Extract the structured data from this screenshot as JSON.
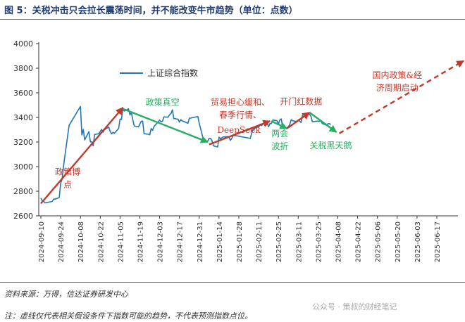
{
  "header": {
    "title": "图 5：关税冲击只会拉长震荡时间，并不能改变牛市趋势（单位：点数）"
  },
  "footer": {
    "source": "资料来源：万得，信达证券研发中心",
    "note": "注：虚线仅代表相关假设条件下指数可能的趋势，不代表预测指数点位。",
    "watermark": "公众号 · 策叔的财经笔记"
  },
  "chart_data": {
    "type": "line",
    "title": "",
    "xlabel": "",
    "ylabel": "",
    "ylim": [
      2600,
      4000
    ],
    "yticks": [
      2600,
      2800,
      3000,
      3200,
      3400,
      3600,
      3800,
      4000
    ],
    "xticks": [
      "2024-09-10",
      "2024-09-24",
      "2024-10-08",
      "2024-10-22",
      "2024-11-05",
      "2024-11-19",
      "2024-12-03",
      "2024-12-17",
      "2024-12-31",
      "2025-01-14",
      "2025-01-28",
      "2025-02-11",
      "2025-02-25",
      "2025-03-11",
      "2025-03-25",
      "2025-04-08",
      "2025-04-22",
      "2025-05-06",
      "2025-05-20",
      "2025-06-03",
      "2025-06-17"
    ],
    "legend": {
      "position": "top-left"
    },
    "series": [
      {
        "name": "上证综合指数",
        "color": "#1f77b4",
        "points": [
          [
            "2024-09-10",
            2744
          ],
          [
            "2024-09-11",
            2722
          ],
          [
            "2024-09-12",
            2717
          ],
          [
            "2024-09-13",
            2705
          ],
          [
            "2024-09-18",
            2717
          ],
          [
            "2024-09-19",
            2736
          ],
          [
            "2024-09-20",
            2736
          ],
          [
            "2024-09-23",
            2748
          ],
          [
            "2024-09-24",
            2864
          ],
          [
            "2024-09-25",
            2897
          ],
          [
            "2024-09-26",
            3000
          ],
          [
            "2024-09-27",
            3088
          ],
          [
            "2024-09-30",
            3336
          ],
          [
            "2024-10-08",
            3489
          ],
          [
            "2024-10-09",
            3258
          ],
          [
            "2024-10-10",
            3302
          ],
          [
            "2024-10-11",
            3217
          ],
          [
            "2024-10-14",
            3284
          ],
          [
            "2024-10-15",
            3201
          ],
          [
            "2024-10-16",
            3202
          ],
          [
            "2024-10-17",
            3169
          ],
          [
            "2024-10-18",
            3261
          ],
          [
            "2024-10-21",
            3268
          ],
          [
            "2024-10-22",
            3285
          ],
          [
            "2024-10-23",
            3302
          ],
          [
            "2024-10-24",
            3280
          ],
          [
            "2024-10-25",
            3300
          ],
          [
            "2024-10-28",
            3322
          ],
          [
            "2024-10-29",
            3286
          ],
          [
            "2024-10-30",
            3266
          ],
          [
            "2024-10-31",
            3279
          ],
          [
            "2024-11-01",
            3272
          ],
          [
            "2024-11-04",
            3310
          ],
          [
            "2024-11-05",
            3387
          ],
          [
            "2024-11-06",
            3383
          ],
          [
            "2024-11-07",
            3470
          ],
          [
            "2024-11-08",
            3452
          ],
          [
            "2024-11-11",
            3470
          ],
          [
            "2024-11-12",
            3421
          ],
          [
            "2024-11-13",
            3439
          ],
          [
            "2024-11-14",
            3380
          ],
          [
            "2024-11-15",
            3331
          ],
          [
            "2024-11-18",
            3323
          ],
          [
            "2024-11-19",
            3346
          ],
          [
            "2024-11-20",
            3368
          ],
          [
            "2024-11-21",
            3370
          ],
          [
            "2024-11-22",
            3268
          ],
          [
            "2024-11-25",
            3263
          ],
          [
            "2024-11-26",
            3259
          ],
          [
            "2024-11-27",
            3310
          ],
          [
            "2024-11-28",
            3295
          ],
          [
            "2024-11-29",
            3327
          ],
          [
            "2024-12-02",
            3364
          ],
          [
            "2024-12-03",
            3378
          ],
          [
            "2024-12-04",
            3365
          ],
          [
            "2024-12-05",
            3368
          ],
          [
            "2024-12-06",
            3404
          ],
          [
            "2024-12-09",
            3402
          ],
          [
            "2024-12-10",
            3422
          ],
          [
            "2024-12-11",
            3432
          ],
          [
            "2024-12-12",
            3461
          ],
          [
            "2024-12-13",
            3391
          ],
          [
            "2024-12-16",
            3386
          ],
          [
            "2024-12-17",
            3361
          ],
          [
            "2024-12-18",
            3382
          ],
          [
            "2024-12-19",
            3371
          ],
          [
            "2024-12-20",
            3368
          ],
          [
            "2024-12-23",
            3352
          ],
          [
            "2024-12-24",
            3394
          ],
          [
            "2024-12-25",
            3394
          ],
          [
            "2024-12-26",
            3398
          ],
          [
            "2024-12-27",
            3400
          ],
          [
            "2024-12-30",
            3407
          ],
          [
            "2024-12-31",
            3352
          ],
          [
            "2025-01-02",
            3262
          ],
          [
            "2025-01-03",
            3211
          ],
          [
            "2025-01-06",
            3206
          ],
          [
            "2025-01-07",
            3230
          ],
          [
            "2025-01-08",
            3230
          ],
          [
            "2025-01-09",
            3211
          ],
          [
            "2025-01-10",
            3169
          ],
          [
            "2025-01-13",
            3160
          ],
          [
            "2025-01-14",
            3240
          ],
          [
            "2025-01-15",
            3227
          ],
          [
            "2025-01-16",
            3236
          ],
          [
            "2025-01-17",
            3241
          ],
          [
            "2025-01-20",
            3244
          ],
          [
            "2025-01-21",
            3242
          ],
          [
            "2025-01-22",
            3213
          ],
          [
            "2025-01-23",
            3230
          ],
          [
            "2025-01-24",
            3253
          ],
          [
            "2025-01-27",
            3250
          ],
          [
            "2025-02-05",
            3229
          ],
          [
            "2025-02-06",
            3270
          ],
          [
            "2025-02-07",
            3303
          ],
          [
            "2025-02-10",
            3322
          ],
          [
            "2025-02-11",
            3318
          ],
          [
            "2025-02-12",
            3346
          ],
          [
            "2025-02-13",
            3333
          ],
          [
            "2025-02-14",
            3346
          ],
          [
            "2025-02-17",
            3355
          ],
          [
            "2025-02-18",
            3324
          ],
          [
            "2025-02-19",
            3351
          ],
          [
            "2025-02-20",
            3350
          ],
          [
            "2025-02-21",
            3379
          ],
          [
            "2025-02-24",
            3373
          ],
          [
            "2025-02-25",
            3346
          ],
          [
            "2025-02-26",
            3380
          ],
          [
            "2025-02-27",
            3388
          ],
          [
            "2025-02-28",
            3320
          ],
          [
            "2025-03-03",
            3316
          ],
          [
            "2025-03-04",
            3324
          ],
          [
            "2025-03-05",
            3342
          ],
          [
            "2025-03-06",
            3381
          ],
          [
            "2025-03-07",
            3373
          ],
          [
            "2025-03-10",
            3366
          ],
          [
            "2025-03-11",
            3379
          ],
          [
            "2025-03-12",
            3371
          ],
          [
            "2025-03-13",
            3358
          ],
          [
            "2025-03-14",
            3419
          ],
          [
            "2025-03-17",
            3426
          ],
          [
            "2025-03-18",
            3429
          ],
          [
            "2025-03-19",
            3426
          ],
          [
            "2025-03-20",
            3408
          ],
          [
            "2025-03-21",
            3364
          ],
          [
            "2025-03-24",
            3370
          ],
          [
            "2025-03-25",
            3369
          ],
          [
            "2025-03-26",
            3368
          ],
          [
            "2025-03-27",
            3373
          ],
          [
            "2025-03-28",
            3351
          ],
          [
            "2025-03-31",
            3336
          ],
          [
            "2025-04-01",
            3348
          ],
          [
            "2025-04-02",
            3350
          ],
          [
            "2025-04-03",
            3342
          ]
        ]
      }
    ],
    "trend_arrows": [
      {
        "color": "#c0392b",
        "from": [
          "2024-09-10",
          2700
        ],
        "to": [
          "2024-11-07",
          3480
        ]
      },
      {
        "color": "#27ae60",
        "from": [
          "2024-11-07",
          3470
        ],
        "to": [
          "2025-01-06",
          3200
        ]
      },
      {
        "color": "#c0392b",
        "from": [
          "2025-01-07",
          3180
        ],
        "to": [
          "2025-02-19",
          3370
        ]
      },
      {
        "color": "#27ae60",
        "from": [
          "2025-02-20",
          3370
        ],
        "to": [
          "2025-03-03",
          3310
        ]
      },
      {
        "color": "#c0392b",
        "from": [
          "2025-03-03",
          3310
        ],
        "to": [
          "2025-03-19",
          3440
        ]
      },
      {
        "color": "#27ae60",
        "from": [
          "2025-03-19",
          3440
        ],
        "to": [
          "2025-04-07",
          3280
        ]
      }
    ],
    "projection": {
      "color": "#c0392b",
      "style": "dashed",
      "from": [
        "2025-04-09",
        3270
      ],
      "to": [
        "2025-07-06",
        3860
      ]
    },
    "annotations": [
      {
        "text": "政策博弈",
        "color": "#c0392b",
        "x": "2024-09-29",
        "y": 2935,
        "lines": [
          "政策博",
          "点"
        ]
      },
      {
        "text": "政策真空",
        "color": "#27ae60",
        "x": "2024-12-05",
        "y": 3500
      },
      {
        "text": "贸易担心缓和、春季行情、",
        "color": "#c0392b",
        "x": "2025-01-29",
        "y": 3500,
        "lines": [
          "贸易担心缓和、",
          "春季行情、"
        ]
      },
      {
        "text": "DeepSeek",
        "color": "#c0392b",
        "x": "2025-01-28",
        "y": 3275
      },
      {
        "text": "开门红数据",
        "color": "#c0392b",
        "x": "2025-03-13",
        "y": 3505
      },
      {
        "text": "两会波折",
        "color": "#27ae60",
        "x": "2025-02-26",
        "y": 3245,
        "lines": [
          "两会",
          "波折"
        ]
      },
      {
        "text": "关税黑天鹅",
        "color": "#27ae60",
        "x": "2025-04-03",
        "y": 3150
      },
      {
        "text": "国内政策&经济周期启动",
        "color": "#c0392b",
        "x": "2025-05-20",
        "y": 3720,
        "lines": [
          "国内政策&经",
          "济周期启动"
        ]
      }
    ]
  }
}
